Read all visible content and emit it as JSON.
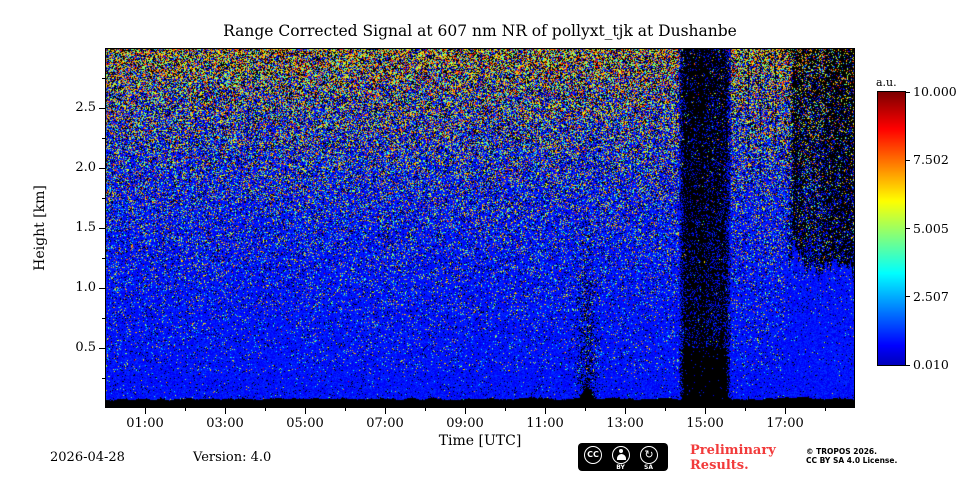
{
  "chart_data": {
    "type": "heatmap",
    "title": "Range Corrected Signal at 607 nm NR of pollyxt_tjk at Dushanbe",
    "xlabel": "Time [UTC]",
    "ylabel": "Height [km]",
    "colorbar_label": "a.u.",
    "colormap": "jet",
    "value_range_au": [
      0.01,
      10.0
    ],
    "colorbar_ticks": [
      "10.000",
      "7.502",
      "5.005",
      "2.507",
      "0.010"
    ],
    "x_range_hours": [
      0,
      18.75
    ],
    "x_ticks": [
      {
        "hour": 1,
        "label": "01:00"
      },
      {
        "hour": 3,
        "label": "03:00"
      },
      {
        "hour": 5,
        "label": "05:00"
      },
      {
        "hour": 7,
        "label": "07:00"
      },
      {
        "hour": 9,
        "label": "09:00"
      },
      {
        "hour": 11,
        "label": "11:00"
      },
      {
        "hour": 13,
        "label": "13:00"
      },
      {
        "hour": 15,
        "label": "15:00"
      },
      {
        "hour": 17,
        "label": "17:00"
      }
    ],
    "x_minor_ticks": [
      2,
      4,
      6,
      8,
      10,
      12,
      14,
      16,
      18
    ],
    "y_range_km": [
      0,
      3.0
    ],
    "y_ticks": [
      {
        "km": 0.5,
        "label": "0.5"
      },
      {
        "km": 1.0,
        "label": "1.0"
      },
      {
        "km": 1.5,
        "label": "1.5"
      },
      {
        "km": 2.0,
        "label": "2.0"
      },
      {
        "km": 2.5,
        "label": "2.5"
      }
    ],
    "y_minor_ticks": [
      0.25,
      0.75,
      1.25,
      1.75,
      2.25,
      2.75
    ],
    "features": {
      "description": "Noisy range-corrected lidar signal: blue low-signal background with speckle noise whose density and brightness (green/yellow/red) increase with height; black near-surface layer; dark plume near 12:00 UTC below ~1.7 km; nearly opaque black column 14:21-15:39 UTC; black attenuated streaks above ~1.25 km after ~17:06 UTC with clean blue below.",
      "background_signal_au": 0.5,
      "surface_black_layer_top_km": 0.08,
      "plume": {
        "time_utc": [
          11.8,
          12.3
        ],
        "top_km": 1.7
      },
      "opaque_black_column_utc": [
        14.35,
        15.65
      ],
      "attenuated_region": {
        "start_utc": 17.1,
        "base_km": 1.25
      },
      "render_seed": 42
    }
  },
  "footer": {
    "date": "2026-04-28",
    "version": "Version: 4.0",
    "preliminary_line1": "Preliminary",
    "preliminary_line2": "Results.",
    "copyright_line1": "© TROPOS 2026.",
    "copyright_line2": "CC BY SA 4.0 License.",
    "cc_badge": {
      "cc": "CC",
      "by": "BY",
      "sa": "SA",
      "sa_icon_glyph": "↻"
    }
  },
  "colors": {
    "preliminary_red": "#f23b3b",
    "plot_text": "#000000",
    "badge_bg": "#000000"
  }
}
